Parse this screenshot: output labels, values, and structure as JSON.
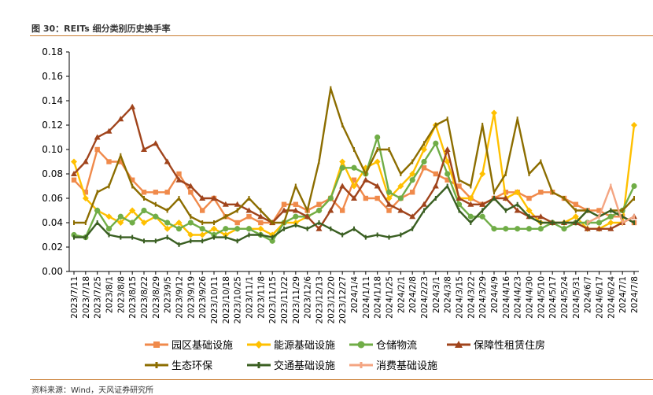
{
  "figure": {
    "title": "图 30：REITs 细分类别历史换手率",
    "source": "资料来源：Wind，天风证券研究所"
  },
  "colors": {
    "园区基础设施": "#f08a4b",
    "能源基础设施": "#ffc000",
    "仓储物流": "#70ad47",
    "保障性租赁住房": "#a0441c",
    "生态环保": "#8c6d00",
    "交通基础设施": "#3a5f22",
    "消费基础设施": "#f4a582"
  },
  "chart_data": {
    "type": "line",
    "title": "",
    "xlabel": "",
    "ylabel": "",
    "ylim": [
      0,
      0.18
    ],
    "yticks": [
      "0.00",
      "0.02",
      "0.04",
      "0.06",
      "0.08",
      "0.10",
      "0.12",
      "0.14",
      "0.16",
      "0.18"
    ],
    "grid": false,
    "legend": "bottom",
    "categories": [
      "2023/7/11",
      "2023/7/18",
      "2023/7/25",
      "2023/8/1",
      "2023/8/8",
      "2023/8/15",
      "2023/8/22",
      "2023/8/29",
      "2023/9/5",
      "2023/9/12",
      "2023/9/19",
      "2023/9/26",
      "2023/10/11",
      "2023/10/18",
      "2023/10/25",
      "2023/11/1",
      "2023/11/8",
      "2023/11/15",
      "2023/11/22",
      "2023/11/29",
      "2023/12/6",
      "2023/12/13",
      "2023/12/20",
      "2023/12/27",
      "2024/1/4",
      "2024/1/11",
      "2024/1/18",
      "2024/1/25",
      "2024/2/1",
      "2024/2/8",
      "2024/2/23",
      "2024/3/1",
      "2024/3/8",
      "2024/3/15",
      "2024/3/22",
      "2024/3/29",
      "2024/4/9",
      "2024/4/16",
      "2024/4/23",
      "2024/4/30",
      "2024/5/10",
      "2024/5/17",
      "2024/5/24",
      "2024/5/31",
      "2024/6/7",
      "2024/6/17",
      "2024/6/24",
      "2024/7/1",
      "2024/7/8"
    ],
    "series": [
      {
        "name": "园区基础设施",
        "marker": "square",
        "values": [
          0.075,
          0.065,
          0.1,
          0.09,
          0.09,
          0.075,
          0.065,
          0.065,
          0.065,
          0.08,
          0.065,
          0.05,
          0.06,
          0.045,
          0.04,
          0.045,
          0.04,
          0.04,
          0.055,
          0.055,
          0.05,
          0.055,
          0.06,
          0.05,
          0.075,
          0.06,
          0.06,
          0.05,
          0.06,
          0.065,
          0.085,
          0.08,
          0.075,
          0.07,
          0.06,
          0.055,
          0.06,
          0.065,
          0.065,
          0.06,
          0.065,
          0.065,
          0.06,
          0.055,
          0.05,
          0.05,
          0.045,
          0.045,
          0.04
        ]
      },
      {
        "name": "能源基础设施",
        "marker": "diamond",
        "values": [
          0.09,
          0.06,
          0.05,
          0.045,
          0.04,
          0.05,
          0.04,
          0.045,
          0.035,
          0.04,
          0.03,
          0.03,
          0.035,
          0.03,
          0.035,
          0.035,
          0.035,
          0.03,
          0.04,
          0.04,
          0.045,
          0.05,
          0.06,
          0.09,
          0.07,
          0.085,
          0.09,
          0.06,
          0.07,
          0.08,
          0.1,
          0.12,
          0.09,
          0.06,
          0.06,
          0.08,
          0.13,
          0.06,
          0.065,
          0.05,
          0.04,
          0.04,
          0.04,
          0.045,
          0.035,
          0.035,
          0.04,
          0.04,
          0.12
        ]
      },
      {
        "name": "仓储物流",
        "marker": "circle",
        "values": [
          0.03,
          0.028,
          0.05,
          0.035,
          0.045,
          0.04,
          0.05,
          0.045,
          0.04,
          0.035,
          0.04,
          0.035,
          0.03,
          0.035,
          0.035,
          0.035,
          0.03,
          0.025,
          0.04,
          0.045,
          0.045,
          0.05,
          0.06,
          0.085,
          0.085,
          0.08,
          0.11,
          0.065,
          0.06,
          0.075,
          0.09,
          0.105,
          0.08,
          0.055,
          0.045,
          0.045,
          0.035,
          0.035,
          0.035,
          0.035,
          0.035,
          0.04,
          0.035,
          0.04,
          0.04,
          0.04,
          0.045,
          0.05,
          0.07
        ]
      },
      {
        "name": "保障性租赁住房",
        "marker": "triangle",
        "values": [
          0.08,
          0.09,
          0.11,
          0.115,
          0.125,
          0.135,
          0.1,
          0.105,
          0.09,
          0.075,
          0.07,
          0.06,
          0.06,
          0.055,
          0.055,
          0.05,
          0.045,
          0.04,
          0.05,
          0.05,
          0.045,
          0.035,
          0.05,
          0.07,
          0.06,
          0.075,
          0.07,
          0.055,
          0.05,
          0.045,
          0.055,
          0.07,
          0.1,
          0.06,
          0.055,
          0.055,
          0.06,
          0.06,
          0.05,
          0.045,
          0.045,
          0.04,
          0.04,
          0.04,
          0.035,
          0.035,
          0.035,
          0.04,
          0.045
        ]
      },
      {
        "name": "生态环保",
        "marker": "dash",
        "values": [
          0.04,
          0.04,
          0.065,
          0.07,
          0.095,
          0.07,
          0.06,
          0.055,
          0.05,
          0.06,
          0.045,
          0.04,
          0.04,
          0.045,
          0.05,
          0.06,
          0.05,
          0.04,
          0.04,
          0.07,
          0.05,
          0.09,
          0.15,
          0.12,
          0.1,
          0.08,
          0.1,
          0.1,
          0.08,
          0.09,
          0.105,
          0.12,
          0.125,
          0.075,
          0.07,
          0.12,
          0.065,
          0.08,
          0.125,
          0.08,
          0.09,
          0.065,
          0.06,
          0.05,
          0.05,
          0.045,
          0.05,
          0.05,
          0.06
        ]
      },
      {
        "name": "交通基础设施",
        "marker": "dash",
        "values": [
          0.028,
          0.028,
          0.04,
          0.03,
          0.028,
          0.028,
          0.025,
          0.025,
          0.028,
          0.022,
          0.025,
          0.025,
          0.028,
          0.028,
          0.025,
          0.03,
          0.03,
          0.028,
          0.035,
          0.038,
          0.035,
          0.04,
          0.035,
          0.03,
          0.035,
          0.028,
          0.03,
          0.028,
          0.03,
          0.035,
          0.05,
          0.06,
          0.07,
          0.05,
          0.04,
          0.05,
          0.06,
          0.05,
          0.055,
          0.045,
          0.04,
          0.04,
          0.04,
          0.04,
          0.05,
          0.045,
          0.05,
          0.045,
          0.04
        ]
      },
      {
        "name": "消费基础设施",
        "marker": "dash",
        "values": [
          null,
          null,
          null,
          null,
          null,
          null,
          null,
          null,
          null,
          null,
          null,
          null,
          null,
          null,
          null,
          null,
          null,
          null,
          null,
          null,
          null,
          null,
          null,
          null,
          null,
          null,
          null,
          null,
          null,
          null,
          null,
          null,
          null,
          null,
          null,
          null,
          null,
          null,
          null,
          null,
          null,
          null,
          null,
          null,
          0.04,
          0.045,
          0.07,
          0.04,
          0.045
        ]
      }
    ]
  }
}
